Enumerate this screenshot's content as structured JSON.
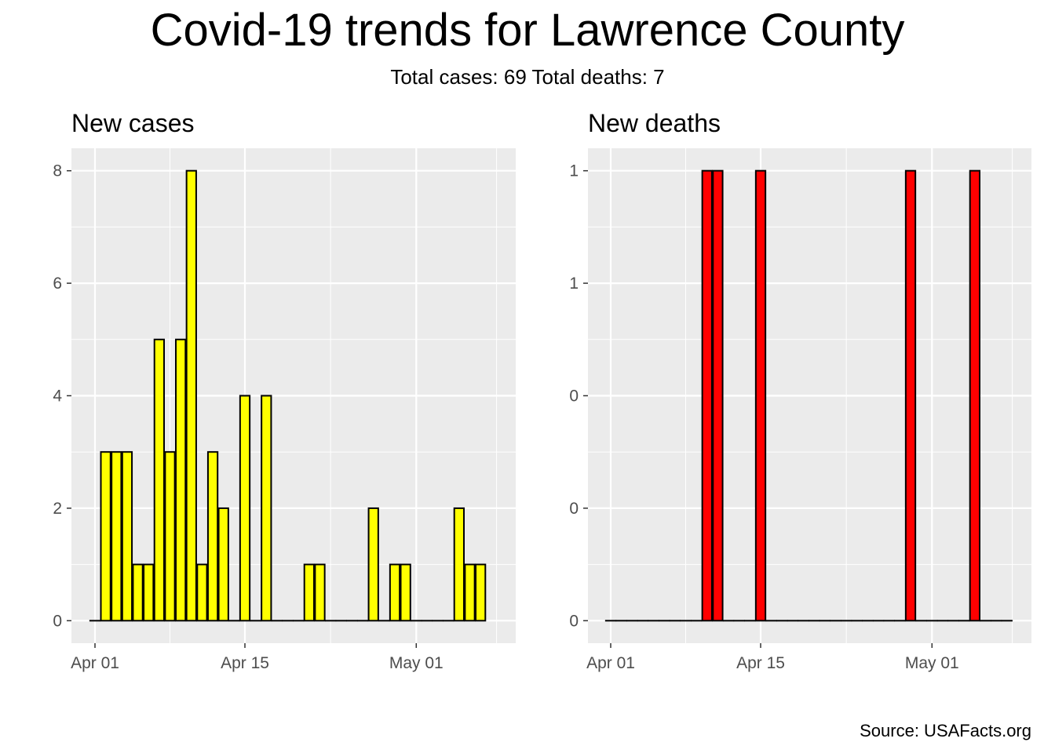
{
  "title": "Covid-19 trends for Lawrence County",
  "subtitle": "Total cases: 69  Total deaths: 7",
  "source": "Source: USAFacts.org",
  "colors": {
    "panel_bg": "#ebebeb",
    "grid": "#ffffff",
    "cases_fill": "#ffff00",
    "deaths_fill": "#ff0000",
    "bar_outline": "#000000",
    "tick_text": "#4d4d4d"
  },
  "chart_data": [
    {
      "type": "bar",
      "title": "New cases",
      "x_ticks": [
        "Apr 01",
        "Apr 15",
        "May 01"
      ],
      "x_tick_dates": [
        "2020-04-01",
        "2020-04-15",
        "2020-05-01"
      ],
      "xlim": [
        "2019-03-29",
        "2020-05-10"
      ],
      "y_ticks": [
        0,
        2,
        4,
        6,
        8
      ],
      "y_tick_labels": [
        "0",
        "2",
        "4",
        "6",
        "8"
      ],
      "ylim": [
        -0.4,
        8.4
      ],
      "fill": "#ffff00",
      "dates": [
        "2020-04-01",
        "2020-04-02",
        "2020-04-03",
        "2020-04-04",
        "2020-04-05",
        "2020-04-06",
        "2020-04-07",
        "2020-04-08",
        "2020-04-09",
        "2020-04-10",
        "2020-04-11",
        "2020-04-12",
        "2020-04-13",
        "2020-04-14",
        "2020-04-15",
        "2020-04-16",
        "2020-04-17",
        "2020-04-18",
        "2020-04-19",
        "2020-04-20",
        "2020-04-21",
        "2020-04-22",
        "2020-04-23",
        "2020-04-24",
        "2020-04-25",
        "2020-04-26",
        "2020-04-27",
        "2020-04-28",
        "2020-04-29",
        "2020-04-30",
        "2020-05-01",
        "2020-05-02",
        "2020-05-03",
        "2020-05-04",
        "2020-05-05",
        "2020-05-06",
        "2020-05-07"
      ],
      "values": [
        0,
        3,
        3,
        3,
        1,
        1,
        5,
        3,
        5,
        8,
        1,
        3,
        2,
        0,
        4,
        0,
        4,
        0,
        0,
        0,
        1,
        1,
        0,
        0,
        0,
        0,
        2,
        0,
        1,
        1,
        0,
        0,
        0,
        0,
        2,
        1,
        1
      ]
    },
    {
      "type": "bar",
      "title": "New deaths",
      "x_ticks": [
        "Apr 01",
        "Apr 15",
        "May 01"
      ],
      "x_tick_dates": [
        "2020-04-01",
        "2020-04-15",
        "2020-05-01"
      ],
      "y_ticks": [
        0,
        0.25,
        0.5,
        0.75,
        1
      ],
      "y_tick_labels": [
        "0",
        "0",
        "0",
        "1",
        "1"
      ],
      "ylim": [
        -0.05,
        1.05
      ],
      "fill": "#ff0000",
      "dates": [
        "2020-04-01",
        "2020-04-02",
        "2020-04-03",
        "2020-04-04",
        "2020-04-05",
        "2020-04-06",
        "2020-04-07",
        "2020-04-08",
        "2020-04-09",
        "2020-04-10",
        "2020-04-11",
        "2020-04-12",
        "2020-04-13",
        "2020-04-14",
        "2020-04-15",
        "2020-04-16",
        "2020-04-17",
        "2020-04-18",
        "2020-04-19",
        "2020-04-20",
        "2020-04-21",
        "2020-04-22",
        "2020-04-23",
        "2020-04-24",
        "2020-04-25",
        "2020-04-26",
        "2020-04-27",
        "2020-04-28",
        "2020-04-29",
        "2020-04-30",
        "2020-05-01",
        "2020-05-02",
        "2020-05-03",
        "2020-05-04",
        "2020-05-05",
        "2020-05-06",
        "2020-05-07",
        "2020-05-08"
      ],
      "values": [
        0,
        0,
        0,
        0,
        0,
        0,
        0,
        0,
        0,
        1,
        1,
        0,
        0,
        0,
        1,
        0,
        0,
        0,
        0,
        0,
        0,
        0,
        0,
        0,
        0,
        0,
        0,
        0,
        1,
        0,
        0,
        0,
        0,
        0,
        1,
        0,
        0,
        0
      ]
    }
  ]
}
